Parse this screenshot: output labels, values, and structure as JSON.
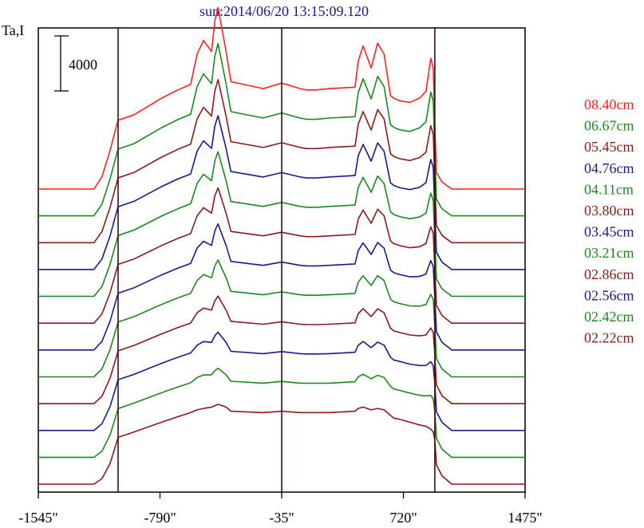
{
  "chart_data": {
    "type": "line",
    "title": "sun:2014/06/20 13:15:09.120",
    "ylabel": "Ta,I",
    "xlabel": "",
    "x_ticks": [
      -1545,
      -790,
      -35,
      720,
      1475
    ],
    "x_tick_labels": [
      "-1545\"",
      "-790\"",
      "-35\"",
      "720\"",
      "1475\""
    ],
    "xlim": [
      -1545,
      1475
    ],
    "vertical_markers": [
      -1050,
      -35,
      915
    ],
    "scale_bar": {
      "value": 4000,
      "label": "4000"
    },
    "offset_step": 4000,
    "grid": false,
    "legend_position": "right",
    "series": [
      {
        "name": "08.40cm",
        "color": "#ff2020"
      },
      {
        "name": "06.67cm",
        "color": "#1a8a1a"
      },
      {
        "name": "05.45cm",
        "color": "#8b1a1a"
      },
      {
        "name": "04.76cm",
        "color": "#1a1a8c"
      },
      {
        "name": "04.11cm",
        "color": "#1a8a1a"
      },
      {
        "name": "03.80cm",
        "color": "#8b1a1a"
      },
      {
        "name": "03.45cm",
        "color": "#1a1a8c"
      },
      {
        "name": "03.21cm",
        "color": "#1a8a1a"
      },
      {
        "name": "02.86cm",
        "color": "#8b1a1a"
      },
      {
        "name": "02.56cm",
        "color": "#1a1a8c"
      },
      {
        "name": "02.42cm",
        "color": "#1a8a1a"
      },
      {
        "name": "02.22cm",
        "color": "#8b1a1a"
      }
    ],
    "profile": {
      "x": [
        -1545,
        -1200,
        -1150,
        -1100,
        -1055,
        -1050,
        -950,
        -780,
        -680,
        -600,
        -560,
        -520,
        -470,
        -450,
        -430,
        -380,
        -350,
        -150,
        -35,
        80,
        120,
        180,
        260,
        420,
        440,
        470,
        520,
        560,
        600,
        640,
        660,
        700,
        760,
        820,
        860,
        890,
        905,
        915,
        925,
        960,
        1020,
        1060,
        1300,
        1475
      ],
      "y_top": [
        0,
        0,
        900,
        2800,
        4800,
        5000,
        5400,
        6600,
        7200,
        7600,
        9800,
        10800,
        10000,
        12200,
        13200,
        10000,
        7800,
        7300,
        7700,
        7300,
        7200,
        7200,
        7300,
        7400,
        9300,
        10400,
        8800,
        10600,
        9800,
        6800,
        6600,
        6400,
        6300,
        6600,
        7100,
        9500,
        8800,
        4500,
        1200,
        500,
        0,
        0,
        0,
        0
      ],
      "y_bottom": [
        0,
        0,
        400,
        1500,
        3200,
        3400,
        3800,
        4500,
        4900,
        5200,
        5400,
        5500,
        5600,
        5700,
        5800,
        5600,
        5300,
        5200,
        5300,
        5200,
        5200,
        5200,
        5200,
        5300,
        5500,
        5600,
        5400,
        5500,
        5400,
        5000,
        4800,
        4700,
        4500,
        4300,
        4200,
        4000,
        3800,
        3200,
        1400,
        600,
        0,
        0,
        0,
        0
      ]
    }
  }
}
